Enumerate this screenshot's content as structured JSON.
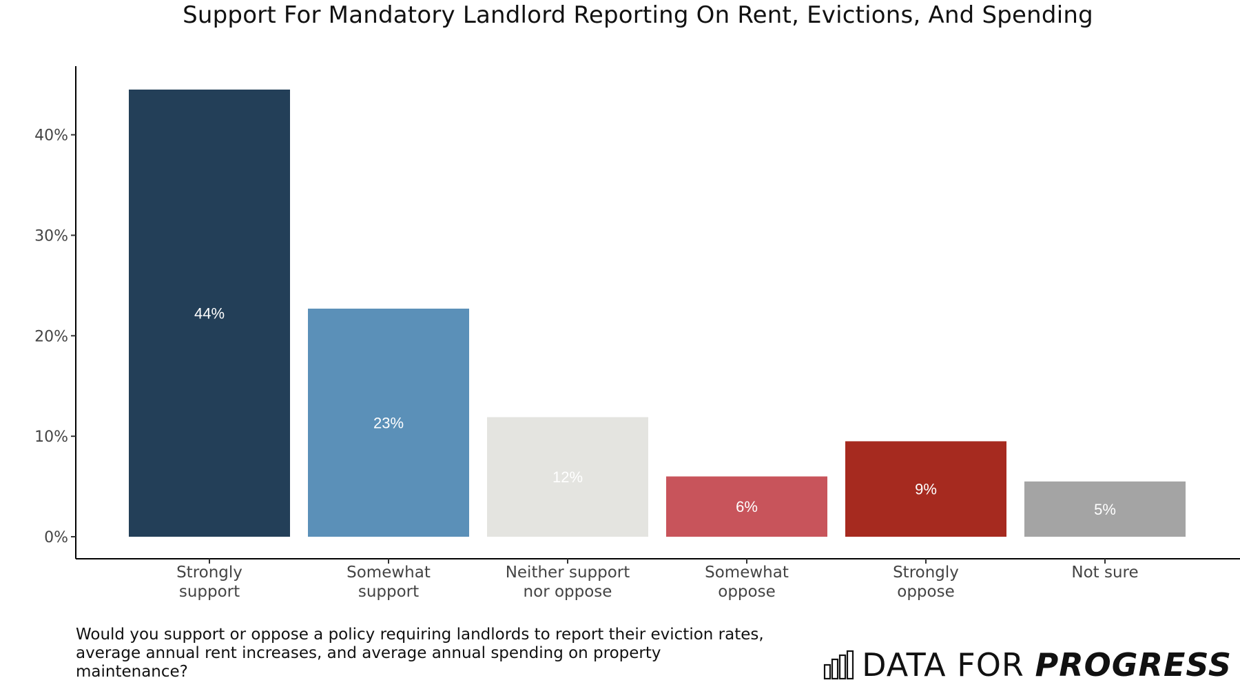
{
  "chart_data": {
    "type": "bar",
    "title": "Support For Mandatory Landlord Reporting On Rent, Evictions, And Spending",
    "categories": [
      [
        "Strongly",
        "support"
      ],
      [
        "Somewhat",
        "support"
      ],
      [
        "Neither support",
        "nor oppose"
      ],
      [
        "Somewhat",
        "oppose"
      ],
      [
        "Strongly",
        "oppose"
      ],
      [
        "Not sure"
      ]
    ],
    "values": [
      44.5,
      22.7,
      11.9,
      6.0,
      9.5,
      5.5
    ],
    "data_labels": [
      "44%",
      "23%",
      "12%",
      "6%",
      "9%",
      "5%"
    ],
    "colors": [
      "#233f58",
      "#5b90b8",
      "#e4e4e0",
      "#c8545b",
      "#a62a1f",
      "#a4a4a4"
    ],
    "ylim": [
      0,
      46
    ],
    "yticks": [
      0,
      10,
      20,
      30,
      40
    ],
    "ytick_labels": [
      "0%",
      "10%",
      "20%",
      "30%",
      "40%"
    ],
    "xlabel": "",
    "ylabel": "",
    "grid": false,
    "legend": "none"
  },
  "question": "Would you support or oppose a policy requiring landlords to report their eviction rates, average annual rent increases, and average annual spending on property maintenance?",
  "brand": {
    "light": "DATA FOR ",
    "bold": "PROGRESS",
    "icon": "bar-chart-logo-icon"
  }
}
